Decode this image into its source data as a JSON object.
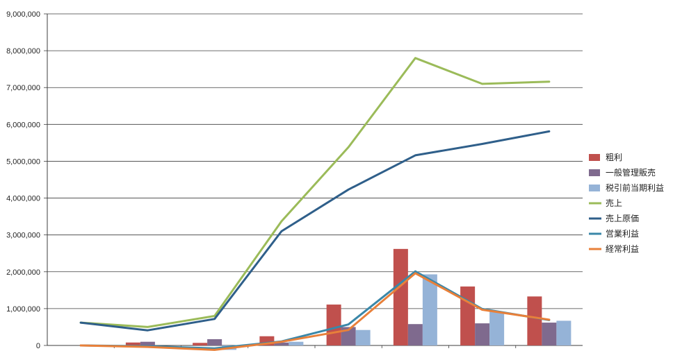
{
  "chart_data": {
    "type": "bar",
    "categories": [
      "",
      "",
      "",
      "",
      "",
      "",
      "",
      ""
    ],
    "ylim": [
      0,
      9000000
    ],
    "yticks": [
      "0",
      "1,000,000",
      "2,000,000",
      "3,000,000",
      "4,000,000",
      "5,000,000",
      "6,000,000",
      "7,000,000",
      "8,000,000",
      "9,000,000"
    ],
    "grid": true,
    "legend_position": "right",
    "bar_series": [
      {
        "name": "粗利",
        "color": "#c0504d",
        "values": [
          0,
          80000,
          70000,
          250000,
          1110000,
          2620000,
          1600000,
          1330000
        ]
      },
      {
        "name": "一般管理販売",
        "color": "#7f6a8e",
        "values": [
          0,
          100000,
          170000,
          80000,
          500000,
          580000,
          600000,
          620000
        ]
      },
      {
        "name": "税引前当期利益",
        "color": "#95b3d7",
        "values": [
          0,
          0,
          -120000,
          100000,
          420000,
          1930000,
          920000,
          670000
        ]
      }
    ],
    "line_series": [
      {
        "name": "売上",
        "color": "#9bbb59",
        "values": [
          620000,
          500000,
          800000,
          3370000,
          5380000,
          7800000,
          7100000,
          7160000
        ]
      },
      {
        "name": "売上原価",
        "color": "#2f5f8a",
        "values": [
          620000,
          410000,
          720000,
          3100000,
          4230000,
          5160000,
          5470000,
          5810000
        ]
      },
      {
        "name": "営業利益",
        "color": "#3a87a8",
        "values": [
          0,
          -20000,
          -80000,
          110000,
          570000,
          2010000,
          990000,
          690000
        ]
      },
      {
        "name": "経常利益",
        "color": "#e8803a",
        "values": [
          0,
          -40000,
          -120000,
          100000,
          420000,
          1960000,
          970000,
          700000
        ]
      }
    ]
  }
}
